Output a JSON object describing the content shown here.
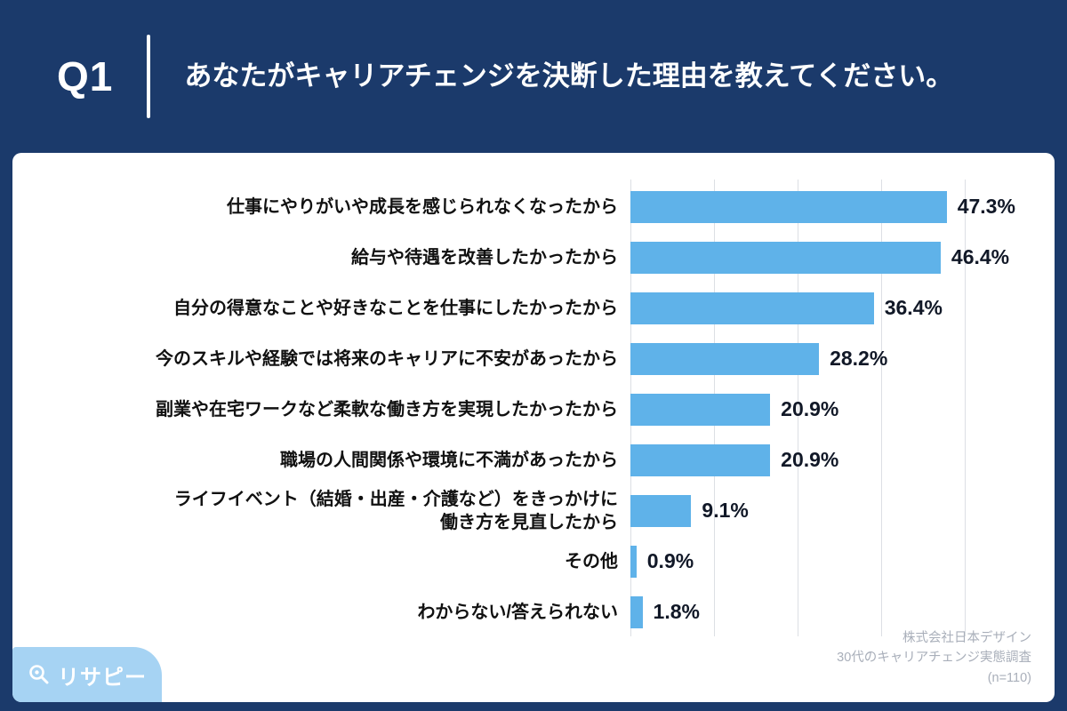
{
  "header": {
    "question_label": "Q1",
    "title": "あなたがキャリアチェンジを決断した理由を教えてください。"
  },
  "chart_data": {
    "type": "bar",
    "orientation": "horizontal",
    "title": "あなたがキャリアチェンジを決断した理由を教えてください。",
    "categories": [
      "仕事にやりがいや成長を感じられなくなったから",
      "給与や待遇を改善したかったから",
      "自分の得意なことや好きなことを仕事にしたかったから",
      "今のスキルや経験では将来のキャリアに不安があったから",
      "副業や在宅ワークなど柔軟な働き方を実現したかったから",
      "職場の人間関係や環境に不満があったから",
      "ライフイベント（結婚・出産・介護など）をきっかけに\n働き方を見直したから",
      "その他",
      "わからない/答えられない"
    ],
    "values": [
      47.3,
      46.4,
      36.4,
      28.2,
      20.9,
      20.9,
      9.1,
      0.9,
      1.8
    ],
    "value_labels": [
      "47.3%",
      "46.4%",
      "36.4%",
      "28.2%",
      "20.9%",
      "20.9%",
      "9.1%",
      "0.9%",
      "1.8%"
    ],
    "xlabel": "",
    "ylabel": "",
    "xlim": [
      0,
      50
    ],
    "gridlines": [
      0,
      12.5,
      25,
      37.5,
      50
    ],
    "grid": "vertical",
    "legend_position": "none",
    "bar_color": "#5FB2E9"
  },
  "footer": {
    "logo_text": "リサピー",
    "source_lines": [
      "株式会社日本デザイン",
      "30代のキャリアチェンジ実態調査",
      "(n=110)"
    ]
  },
  "colors": {
    "background": "#1B3A6B",
    "bar": "#5FB2E9",
    "card": "#FFFFFF",
    "gridline": "#DCDFE4",
    "category_text": "#111111",
    "value_text": "#111827",
    "source_text": "#A9AFBA",
    "logo_badge_bg": "#A6D3F3",
    "logo_text": "#FFFFFF"
  }
}
